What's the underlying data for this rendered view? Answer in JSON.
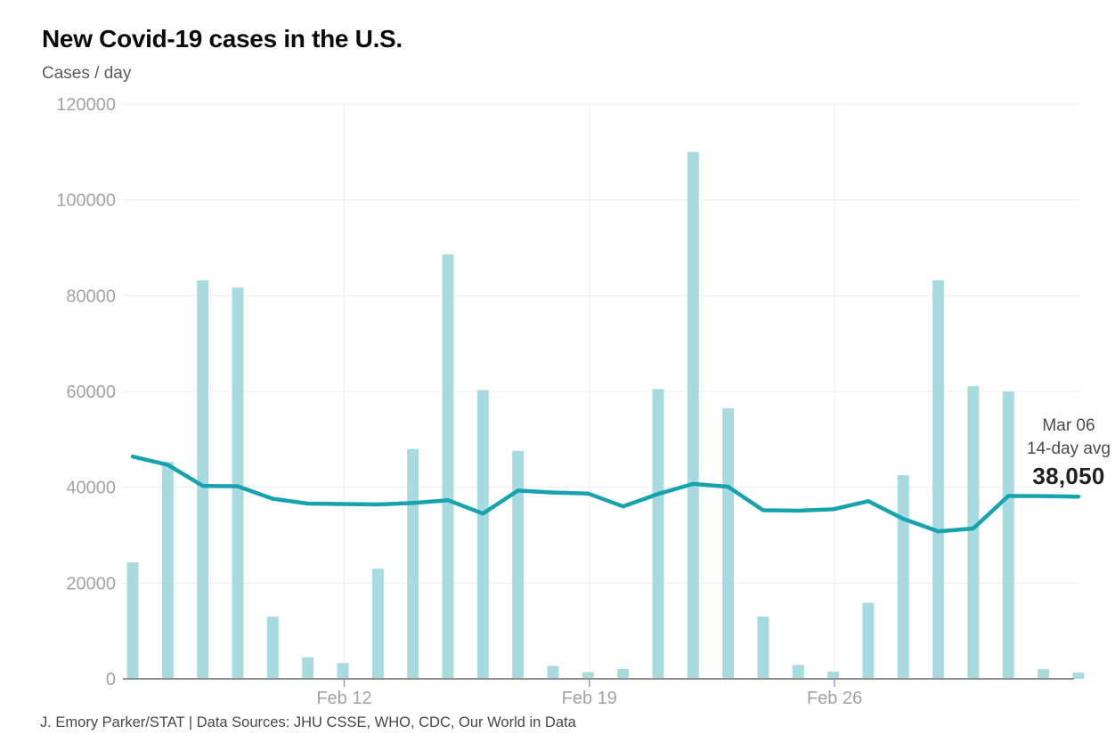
{
  "header": {
    "title": "New Covid-19 cases in the U.S.",
    "subtitle": "Cases / day"
  },
  "annotation": {
    "date": "Mar 06",
    "label": "14-day avg",
    "value": "38,050"
  },
  "footer": {
    "credit": "J. Emory Parker/STAT | Data Sources: JHU CSSE, WHO, CDC, Our World in Data"
  },
  "chart_data": {
    "type": "bar",
    "title": "New Covid-19 cases in the U.S.",
    "ylabel": "Cases / day",
    "xlabel": "",
    "ylim": [
      0,
      120000
    ],
    "grid": true,
    "y_ticks": [
      120000,
      100000,
      80000,
      60000,
      40000,
      20000,
      0
    ],
    "x_tick_labels": [
      "Feb 12",
      "Feb 19",
      "Feb 26"
    ],
    "x_tick_day_indices": [
      6,
      13,
      20
    ],
    "n_days": 28,
    "series": [
      {
        "name": "Daily cases",
        "type": "bar",
        "values": [
          24300,
          45300,
          83200,
          81700,
          13000,
          4500,
          3300,
          23000,
          48000,
          88600,
          60300,
          47600,
          2700,
          1400,
          2100,
          60500,
          110000,
          56500,
          13000,
          2900,
          1500,
          15900,
          42500,
          83200,
          61100,
          60000,
          2000,
          1300
        ]
      },
      {
        "name": "14-day avg",
        "type": "line",
        "values": [
          46400,
          44700,
          40300,
          40200,
          37600,
          36600,
          36500,
          36400,
          36700,
          37300,
          34500,
          39300,
          38900,
          38700,
          36000,
          38600,
          40700,
          40100,
          35200,
          35100,
          35400,
          37100,
          33400,
          30800,
          31400,
          38200,
          38150,
          38050
        ]
      }
    ],
    "colors": {
      "bar": "#a8dbe0",
      "line": "#17a3ae",
      "grid": "#ededed",
      "baseline": "#8f8f8f",
      "tick": "#9c9c9c",
      "axis_text": "#a2a2a2"
    },
    "legend_position": "annotation at line end"
  }
}
